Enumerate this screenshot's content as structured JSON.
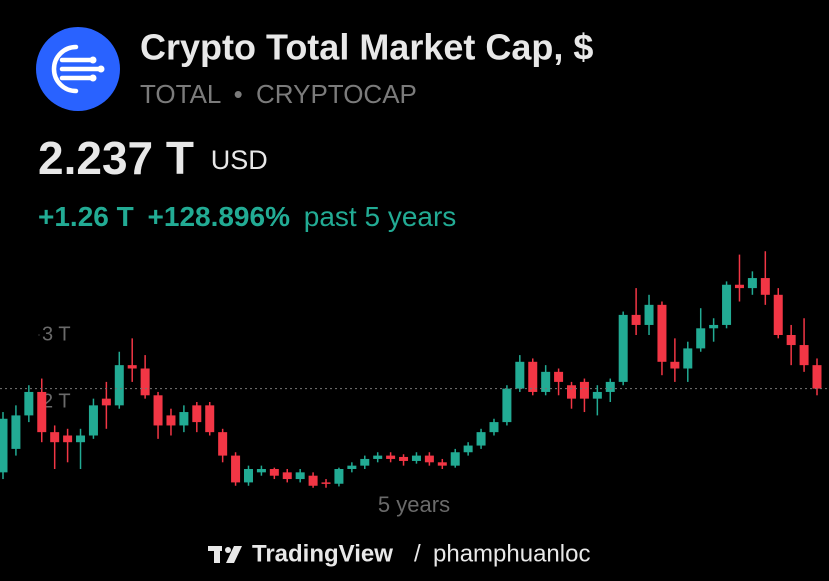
{
  "header": {
    "title": "Crypto Total Market Cap, $",
    "symbol": "TOTAL",
    "separator": "•",
    "exchange": "CRYPTOCAP",
    "price": "2.237 T",
    "currency": "USD",
    "change": "+1.26 T",
    "change_pct": "+128.896%",
    "period": "past 5 years"
  },
  "chart_data": {
    "type": "candlestick",
    "up_color": "#22ab94",
    "down_color": "#f23645",
    "ylim": [
      0.5,
      4.5
    ],
    "yticks": [
      {
        "value": 3,
        "label": "3 T"
      },
      {
        "value": 2,
        "label": "2 T"
      }
    ],
    "range_label": "5 years",
    "open": [
      0.95,
      1.3,
      1.8,
      2.15,
      1.55,
      1.5,
      1.4,
      1.5,
      2.05,
      1.95,
      2.55,
      2.5,
      2.1,
      1.8,
      1.65,
      1.95,
      1.95,
      1.55,
      1.2,
      0.8,
      0.95,
      1.0,
      0.95,
      0.85,
      0.9,
      0.8,
      0.78,
      1.0,
      1.05,
      1.15,
      1.2,
      1.18,
      1.12,
      1.2,
      1.1,
      1.05,
      1.25,
      1.35,
      1.55,
      1.7,
      2.2,
      2.6,
      2.15,
      2.45,
      2.25,
      2.3,
      2.05,
      2.15,
      2.3,
      3.3,
      3.15,
      3.45,
      2.6,
      2.5,
      2.8,
      3.1,
      3.15,
      3.75,
      3.7,
      3.85,
      3.6,
      3.0,
      2.85,
      2.55
    ],
    "high": [
      1.85,
      1.95,
      2.25,
      2.35,
      1.65,
      1.6,
      1.6,
      2.05,
      2.3,
      2.75,
      2.95,
      2.7,
      2.15,
      1.9,
      1.95,
      2.0,
      2.0,
      1.6,
      1.25,
      1.05,
      1.05,
      1.02,
      1.0,
      1.0,
      0.95,
      0.85,
      1.02,
      1.1,
      1.2,
      1.25,
      1.25,
      1.22,
      1.25,
      1.25,
      1.15,
      1.3,
      1.4,
      1.6,
      1.75,
      2.25,
      2.7,
      2.65,
      2.55,
      2.5,
      2.3,
      2.35,
      2.25,
      2.35,
      3.35,
      3.7,
      3.6,
      3.5,
      2.95,
      2.9,
      3.4,
      3.25,
      3.8,
      4.2,
      3.95,
      4.25,
      3.7,
      3.15,
      3.25,
      2.65
    ],
    "low": [
      0.85,
      1.2,
      1.7,
      1.4,
      1.0,
      1.1,
      1.0,
      1.45,
      1.6,
      1.9,
      2.3,
      2.05,
      1.45,
      1.5,
      1.55,
      1.55,
      1.5,
      1.1,
      0.75,
      0.75,
      0.9,
      0.85,
      0.8,
      0.8,
      0.72,
      0.72,
      0.74,
      0.95,
      1.0,
      1.1,
      1.1,
      1.05,
      1.08,
      1.05,
      1.0,
      1.02,
      1.2,
      1.3,
      1.5,
      1.65,
      2.15,
      2.1,
      2.1,
      2.1,
      1.9,
      1.85,
      1.8,
      2.0,
      2.25,
      3.0,
      3.0,
      2.4,
      2.3,
      2.3,
      2.75,
      2.9,
      3.1,
      3.5,
      3.6,
      3.45,
      2.95,
      2.55,
      2.45,
      2.1
    ],
    "close": [
      1.75,
      1.8,
      2.15,
      1.55,
      1.4,
      1.4,
      1.5,
      1.95,
      1.95,
      2.55,
      2.5,
      2.1,
      1.65,
      1.65,
      1.85,
      1.7,
      1.55,
      1.2,
      0.8,
      1.0,
      1.0,
      0.9,
      0.85,
      0.95,
      0.75,
      0.78,
      1.0,
      1.05,
      1.15,
      1.2,
      1.15,
      1.12,
      1.2,
      1.1,
      1.05,
      1.25,
      1.35,
      1.55,
      1.7,
      2.2,
      2.6,
      2.15,
      2.45,
      2.3,
      2.05,
      2.05,
      2.15,
      2.3,
      3.3,
      3.15,
      3.45,
      2.6,
      2.5,
      2.8,
      3.1,
      3.15,
      3.75,
      3.7,
      3.85,
      3.6,
      3.0,
      2.85,
      2.55,
      2.2
    ]
  },
  "footer": {
    "brand": "TradingView",
    "separator": "/",
    "user": "phamphuanloc"
  }
}
